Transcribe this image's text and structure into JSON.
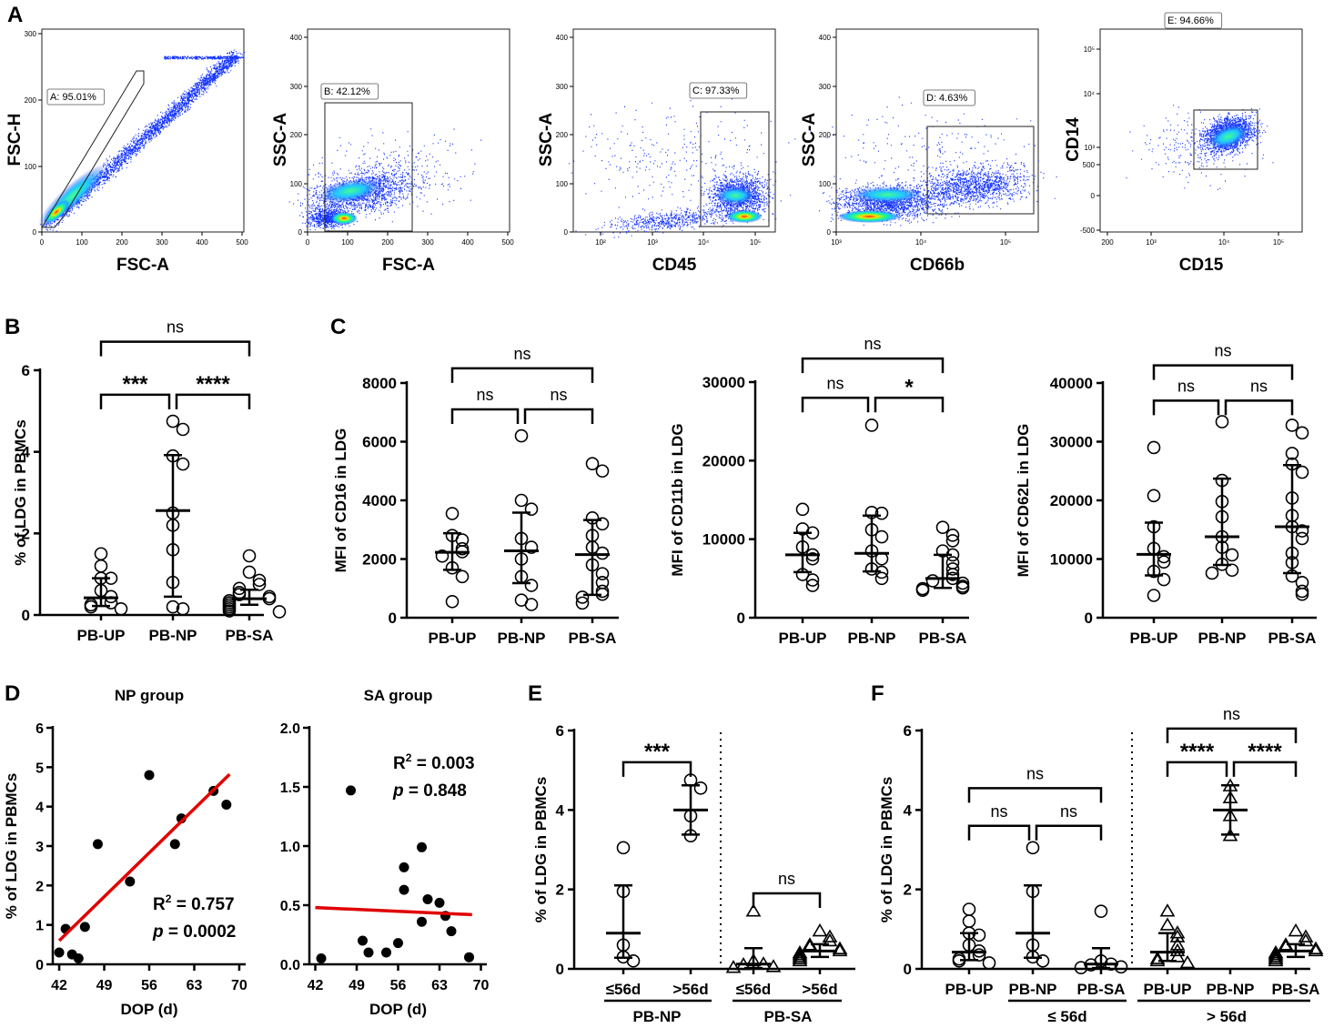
{
  "figure": {
    "panel_letters": [
      "A",
      "B",
      "C",
      "D",
      "E",
      "F"
    ]
  },
  "colors": {
    "red": "#e00000",
    "blue": "#1030ff",
    "black": "#000000"
  },
  "chart_data": [
    {
      "id": "A1",
      "type": "scatter",
      "xlabel": "FSC-A",
      "ylabel": "FSC-H",
      "xticks": [
        "0",
        "100",
        "200",
        "300",
        "400",
        "500"
      ],
      "yticks": [
        "0",
        "100",
        "200",
        "300"
      ],
      "xlim": [
        0,
        500
      ],
      "ylim": [
        0,
        300
      ],
      "gate_label": "A: 95.01%"
    },
    {
      "id": "A2",
      "type": "scatter",
      "xlabel": "FSC-A",
      "ylabel": "SSC-A",
      "xticks": [
        "0",
        "100",
        "200",
        "300",
        "400",
        "500"
      ],
      "yticks": [
        "0",
        "100",
        "200",
        "300",
        "400"
      ],
      "xlim": [
        0,
        500
      ],
      "ylim": [
        0,
        400
      ],
      "gate_label": "B: 42.12%"
    },
    {
      "id": "A3",
      "type": "scatter",
      "xlabel": "CD45",
      "ylabel": "SSC-A",
      "xticks": [
        "10²",
        "10³",
        "10⁴",
        "10⁵"
      ],
      "yticks": [
        "0",
        "100",
        "200",
        "300",
        "400"
      ],
      "ylim": [
        0,
        400
      ],
      "gate_label": "C: 97.33%"
    },
    {
      "id": "A4",
      "type": "scatter",
      "xlabel": "CD66b",
      "ylabel": "SSC-A",
      "xticks": [
        "10³",
        "10⁴",
        "10⁵"
      ],
      "yticks": [
        "0",
        "100",
        "200",
        "300",
        "400"
      ],
      "ylim": [
        0,
        400
      ],
      "gate_label": "D: 4.63%"
    },
    {
      "id": "A5",
      "type": "scatter",
      "xlabel": "CD15",
      "ylabel": "CD14",
      "xticks": [
        "200",
        "10³",
        "10⁴",
        "10⁵"
      ],
      "yticks": [
        "-500",
        "0",
        "500",
        "10³",
        "10⁴",
        "10⁵"
      ],
      "gate_label": "E: 94.66%"
    },
    {
      "id": "B",
      "type": "scatter",
      "ylabel": "% of LDG in PBMCs",
      "categories": [
        "PB-UP",
        "PB-NP",
        "PB-SA"
      ],
      "yticks": [
        "0",
        "2",
        "4",
        "6"
      ],
      "ylim": [
        0,
        6
      ],
      "points": [
        [
          1.5,
          1.2,
          0.9,
          0.9,
          0.6,
          0.45,
          0.3,
          0.25,
          0.2,
          0.15
        ],
        [
          4.75,
          4.55,
          3.9,
          3.7,
          2.5,
          2.2,
          1.6,
          0.8,
          0.2,
          0.15
        ],
        [
          1.45,
          1.05,
          0.85,
          0.75,
          0.65,
          0.55,
          0.5,
          0.45,
          0.4,
          0.35,
          0.3,
          0.25,
          0.2,
          0.15,
          0.1,
          0.08
        ]
      ],
      "median": [
        0.42,
        2.56,
        0.4
      ],
      "iqr_low": [
        0.22,
        0.45,
        0.25
      ],
      "iqr_high": [
        0.9,
        3.92,
        0.62
      ],
      "brackets": [
        {
          "a": 0,
          "b": 1,
          "y": 5.4,
          "label": "***"
        },
        {
          "a": 1,
          "b": 2,
          "y": 5.4,
          "label": "****"
        },
        {
          "a": 0,
          "b": 2,
          "y": 6.7,
          "label": "ns"
        }
      ]
    },
    {
      "id": "C1",
      "type": "scatter",
      "ylabel": "MFI of CD16 in LDG",
      "categories": [
        "PB-UP",
        "PB-NP",
        "PB-SA"
      ],
      "yticks": [
        "0",
        "2000",
        "4000",
        "6000",
        "8000"
      ],
      "ylim": [
        0,
        8000
      ],
      "points": [
        [
          3550,
          2800,
          2650,
          2350,
          2250,
          2100,
          1700,
          1400,
          550
        ],
        [
          6200,
          4000,
          3700,
          2700,
          2400,
          2000,
          1400,
          1100,
          600,
          450
        ],
        [
          5250,
          5000,
          3400,
          3200,
          2800,
          2400,
          2200,
          1800,
          1500,
          1200,
          900,
          800,
          700,
          500
        ]
      ],
      "median": [
        2230,
        2280,
        2150
      ],
      "iqr_low": [
        1630,
        1180,
        780
      ],
      "iqr_high": [
        2880,
        3580,
        3330
      ],
      "brackets": [
        {
          "a": 0,
          "b": 1,
          "y": 7100,
          "label": "ns"
        },
        {
          "a": 1,
          "b": 2,
          "y": 7100,
          "label": "ns"
        },
        {
          "a": 0,
          "b": 2,
          "y": 8500,
          "label": "ns"
        }
      ]
    },
    {
      "id": "C2",
      "type": "scatter",
      "ylabel": "MFI of CD11b in LDG",
      "categories": [
        "PB-UP",
        "PB-NP",
        "PB-SA"
      ],
      "yticks": [
        "0",
        "10000",
        "20000",
        "30000"
      ],
      "ylim": [
        0,
        30000
      ],
      "points": [
        [
          13800,
          11300,
          10800,
          9000,
          8000,
          7500,
          5500,
          4800,
          4100
        ],
        [
          24500,
          13400,
          13300,
          11200,
          10300,
          8500,
          7500,
          6200,
          5800,
          5000
        ],
        [
          11500,
          10500,
          9800,
          8500,
          8000,
          7000,
          6200,
          5500,
          5000,
          4700,
          4400,
          4000,
          3800,
          3700,
          3500
        ]
      ],
      "median": [
        8000,
        8200,
        5000
      ],
      "iqr_low": [
        5800,
        5900,
        3800
      ],
      "iqr_high": [
        10800,
        13000,
        8000
      ],
      "brackets": [
        {
          "a": 0,
          "b": 1,
          "y": 28000,
          "label": "ns"
        },
        {
          "a": 1,
          "b": 2,
          "y": 28000,
          "label": "*"
        },
        {
          "a": 0,
          "b": 2,
          "y": 33000,
          "label": "ns"
        }
      ]
    },
    {
      "id": "C3",
      "type": "scatter",
      "ylabel": "MFI of CD62L in LDG",
      "categories": [
        "PB-UP",
        "PB-NP",
        "PB-SA"
      ],
      "yticks": [
        "0",
        "10000",
        "20000",
        "30000",
        "40000"
      ],
      "ylim": [
        0,
        40000
      ],
      "points": [
        [
          29000,
          20800,
          15500,
          11800,
          10400,
          9500,
          7900,
          6500,
          3800
        ],
        [
          33400,
          23400,
          19800,
          17200,
          13800,
          12000,
          10700,
          9100,
          8100,
          7600
        ],
        [
          32800,
          31500,
          28000,
          26200,
          24800,
          20400,
          17400,
          15500,
          14800,
          13500,
          11000,
          9400,
          7100,
          6000,
          4500,
          4000
        ]
      ],
      "median": [
        10800,
        13800,
        15500
      ],
      "iqr_low": [
        7200,
        9000,
        7600
      ],
      "iqr_high": [
        16200,
        23700,
        26000
      ],
      "brackets": [
        {
          "a": 0,
          "b": 1,
          "y": 37000,
          "label": "ns"
        },
        {
          "a": 1,
          "b": 2,
          "y": 37000,
          "label": "ns"
        },
        {
          "a": 0,
          "b": 2,
          "y": 43000,
          "label": "ns"
        }
      ]
    },
    {
      "id": "D1",
      "type": "scatter",
      "title": "NP group",
      "xlabel": "DOP (d)",
      "ylabel": "% of LDG in PBMCs",
      "xticks": [
        "42",
        "49",
        "56",
        "63",
        "70"
      ],
      "yticks": [
        "0",
        "1",
        "2",
        "3",
        "4",
        "5",
        "6"
      ],
      "xlim": [
        41,
        71
      ],
      "ylim": [
        0,
        6
      ],
      "x": [
        42,
        43,
        44,
        45,
        46,
        48,
        53,
        56,
        60,
        61,
        66,
        68
      ],
      "y": [
        0.3,
        0.9,
        0.25,
        0.15,
        0.95,
        3.05,
        2.1,
        4.8,
        3.05,
        3.7,
        4.4,
        4.05
      ],
      "fit": {
        "x": [
          42,
          68.5
        ],
        "y": [
          0.6,
          4.82
        ]
      },
      "r2_label": "= 0.757",
      "p_label": "= 0.0002"
    },
    {
      "id": "D2",
      "type": "scatter",
      "title": "SA group",
      "xlabel": "DOP (d)",
      "xticks": [
        "42",
        "49",
        "56",
        "63",
        "70"
      ],
      "yticks": [
        "0.0",
        "0.5",
        "1.0",
        "1.5",
        "2.0"
      ],
      "xlim": [
        41,
        71
      ],
      "ylim": [
        0,
        2
      ],
      "x": [
        43,
        48,
        50,
        51,
        54,
        56,
        57,
        57,
        60,
        60,
        61,
        63,
        64,
        65,
        68
      ],
      "y": [
        0.05,
        1.47,
        0.2,
        0.1,
        0.1,
        0.18,
        0.63,
        0.82,
        0.36,
        0.99,
        0.55,
        0.52,
        0.41,
        0.28,
        0.06
      ],
      "fit": {
        "x": [
          42,
          68.5
        ],
        "y": [
          0.48,
          0.42
        ]
      },
      "r2_label": "= 0.003",
      "p_label": "= 0.848"
    },
    {
      "id": "E",
      "type": "scatter",
      "ylabel": "% of LDG in PBMCs",
      "categories": [
        "≤56d",
        ">56d",
        "≤56d",
        ">56d"
      ],
      "groups": [
        "PB-NP",
        "PB-SA"
      ],
      "yticks": [
        "0",
        "2",
        "4",
        "6"
      ],
      "ylim": [
        0,
        6
      ],
      "points": [
        [
          3.05,
          1.95,
          0.6,
          0.3,
          0.2
        ],
        [
          4.75,
          4.55,
          3.85,
          3.35
        ],
        [
          1.45,
          0.2,
          0.12,
          0.1,
          0.05,
          0.03
        ],
        [
          0.95,
          0.8,
          0.7,
          0.6,
          0.55,
          0.5,
          0.45,
          0.4,
          0.35,
          0.3,
          0.25,
          0.2
        ]
      ],
      "median": [
        0.9,
        4.0,
        0.12,
        0.45
      ],
      "iqr_low": [
        0.28,
        3.38,
        0.02,
        0.3
      ],
      "iqr_high": [
        2.1,
        4.62,
        0.52,
        0.62
      ],
      "brackets": [
        {
          "a": 0,
          "b": 1,
          "y": 5.2,
          "label": "***"
        },
        {
          "a": 2,
          "b": 3,
          "y": 1.9,
          "label": "ns"
        }
      ]
    },
    {
      "id": "F",
      "type": "scatter",
      "ylabel": "% of LDG in PBMCs",
      "categories": [
        "PB-UP",
        "PB-NP",
        "PB-SA",
        "PB-UP",
        "PB-NP",
        "PB-SA"
      ],
      "groups": [
        "≤ 56d",
        "> 56d"
      ],
      "yticks": [
        "0",
        "2",
        "4",
        "6"
      ],
      "ylim": [
        0,
        6
      ],
      "points": [
        [
          1.5,
          1.2,
          0.9,
          0.85,
          0.6,
          0.45,
          0.35,
          0.25,
          0.2,
          0.15
        ],
        [
          3.05,
          1.95,
          0.6,
          0.3,
          0.2
        ],
        [
          1.45,
          0.2,
          0.12,
          0.1,
          0.05,
          0.03
        ],
        [
          1.45,
          1.1,
          0.9,
          0.8,
          0.6,
          0.45,
          0.3,
          0.25,
          0.2,
          0.15
        ],
        [
          4.6,
          4.3,
          3.85,
          3.35
        ],
        [
          0.95,
          0.8,
          0.7,
          0.6,
          0.55,
          0.5,
          0.45,
          0.4,
          0.35,
          0.3,
          0.25,
          0.2
        ]
      ],
      "median": [
        0.42,
        0.9,
        0.12,
        0.42,
        4.0,
        0.45
      ],
      "iqr_low": [
        0.22,
        0.28,
        0.02,
        0.2,
        3.38,
        0.3
      ],
      "iqr_high": [
        0.9,
        2.1,
        0.52,
        0.9,
        4.62,
        0.62
      ],
      "brackets": [
        {
          "a": 0,
          "b": 1,
          "y": 3.6,
          "label": "ns"
        },
        {
          "a": 1,
          "b": 2,
          "y": 3.6,
          "label": "ns"
        },
        {
          "a": 0,
          "b": 2,
          "y": 4.55,
          "label": "ns"
        },
        {
          "a": 3,
          "b": 4,
          "y": 5.2,
          "label": "****"
        },
        {
          "a": 4,
          "b": 5,
          "y": 5.2,
          "label": "****"
        },
        {
          "a": 3,
          "b": 5,
          "y": 6.05,
          "label": "ns"
        }
      ]
    }
  ]
}
